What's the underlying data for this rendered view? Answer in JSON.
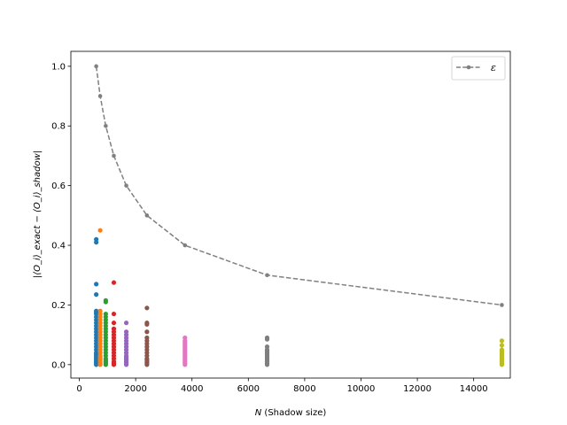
{
  "chart_data": {
    "type": "scatter",
    "title": "",
    "xlabel_var": "N",
    "xlabel_rest": " (Shadow size)",
    "ylabel": "|⟨O_i⟩_exact − ⟨O_i⟩_shadow|",
    "xlim": [
      -300,
      15300
    ],
    "ylim": [
      -0.045,
      1.05
    ],
    "xticks": [
      0,
      2000,
      4000,
      6000,
      8000,
      10000,
      12000,
      14000
    ],
    "yticks": [
      0.0,
      0.2,
      0.4,
      0.6,
      0.8,
      1.0
    ],
    "grid": false,
    "legend_position": "top-right",
    "legend_label": "ε",
    "epsilon_line": {
      "name": "ε",
      "color": "#808080",
      "style": "dashed",
      "x": [
        600,
        741,
        938,
        1225,
        1667,
        2400,
        3750,
        6667,
        15000
      ],
      "y": [
        1.0,
        0.9,
        0.8,
        0.7,
        0.6,
        0.5,
        0.4,
        0.3,
        0.2
      ]
    },
    "scatter_groups": [
      {
        "x": 600,
        "color": "#1f77b4",
        "values": [
          0.42,
          0.41,
          0.27,
          0.235,
          0.18,
          0.175,
          0.17,
          0.16,
          0.15,
          0.14,
          0.13,
          0.12,
          0.11,
          0.1,
          0.09,
          0.08,
          0.07,
          0.06,
          0.05,
          0.04,
          0.035,
          0.03,
          0.025,
          0.02,
          0.015,
          0.01,
          0.005,
          0.0
        ]
      },
      {
        "x": 741,
        "color": "#ff7f0e",
        "values": [
          0.45,
          0.18,
          0.17,
          0.16,
          0.15,
          0.14,
          0.13,
          0.12,
          0.11,
          0.1,
          0.09,
          0.08,
          0.07,
          0.06,
          0.05,
          0.04,
          0.03,
          0.025,
          0.02,
          0.015,
          0.01,
          0.005,
          0.0
        ]
      },
      {
        "x": 938,
        "color": "#2ca02c",
        "values": [
          0.215,
          0.21,
          0.17,
          0.16,
          0.15,
          0.14,
          0.13,
          0.12,
          0.11,
          0.1,
          0.09,
          0.08,
          0.07,
          0.06,
          0.05,
          0.04,
          0.03,
          0.02,
          0.015,
          0.01,
          0.005,
          0.0
        ]
      },
      {
        "x": 1225,
        "color": "#d62728",
        "values": [
          0.275,
          0.17,
          0.14,
          0.12,
          0.11,
          0.1,
          0.09,
          0.08,
          0.07,
          0.06,
          0.05,
          0.04,
          0.03,
          0.02,
          0.01,
          0.005,
          0.0
        ]
      },
      {
        "x": 1667,
        "color": "#9467bd",
        "values": [
          0.14,
          0.11,
          0.1,
          0.09,
          0.08,
          0.07,
          0.06,
          0.05,
          0.04,
          0.03,
          0.025,
          0.02,
          0.015,
          0.01,
          0.005,
          0.0
        ]
      },
      {
        "x": 2400,
        "color": "#8c564b",
        "values": [
          0.19,
          0.14,
          0.135,
          0.11,
          0.09,
          0.08,
          0.07,
          0.06,
          0.05,
          0.04,
          0.03,
          0.02,
          0.015,
          0.01,
          0.005,
          0.0
        ]
      },
      {
        "x": 3750,
        "color": "#e377c2",
        "values": [
          0.09,
          0.08,
          0.075,
          0.07,
          0.065,
          0.06,
          0.055,
          0.05,
          0.045,
          0.04,
          0.035,
          0.03,
          0.025,
          0.02,
          0.015,
          0.01,
          0.005,
          0.0
        ]
      },
      {
        "x": 6667,
        "color": "#7f7f7f",
        "values": [
          0.09,
          0.085,
          0.06,
          0.05,
          0.045,
          0.04,
          0.035,
          0.03,
          0.025,
          0.02,
          0.015,
          0.01,
          0.005,
          0.0
        ]
      },
      {
        "x": 15000,
        "color": "#bcbd22",
        "values": [
          0.08,
          0.065,
          0.05,
          0.045,
          0.04,
          0.035,
          0.03,
          0.025,
          0.02,
          0.015,
          0.01,
          0.005,
          0.0
        ]
      }
    ]
  }
}
